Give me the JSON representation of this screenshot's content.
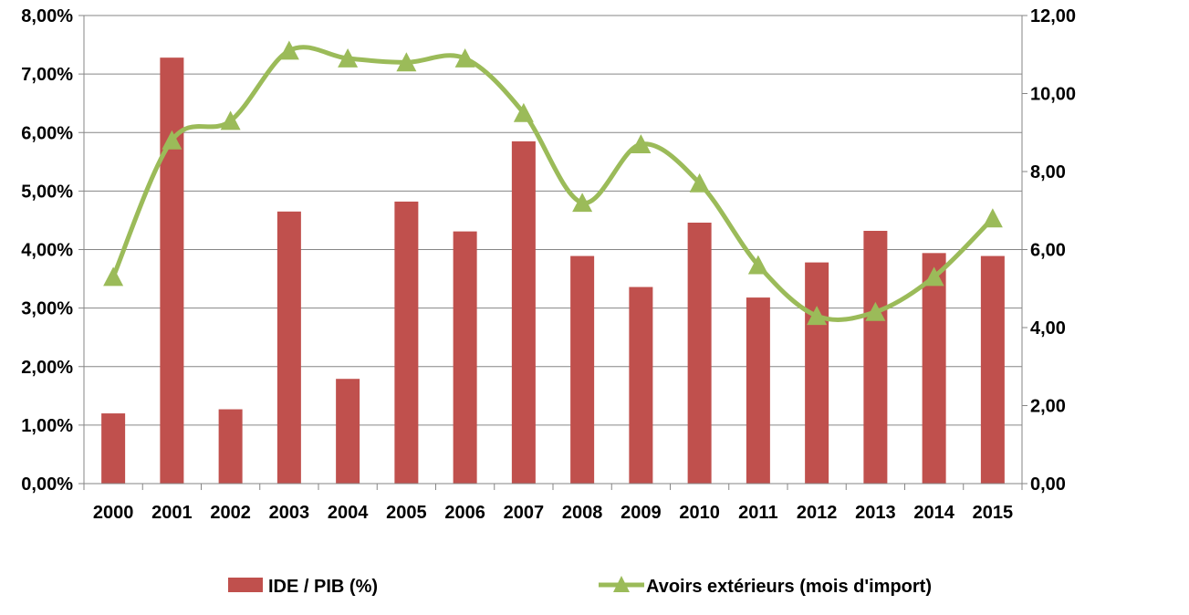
{
  "chart_data": {
    "type": "bar",
    "categories": [
      "2000",
      "2001",
      "2002",
      "2003",
      "2004",
      "2005",
      "2006",
      "2007",
      "2008",
      "2009",
      "2010",
      "2011",
      "2012",
      "2013",
      "2014",
      "2015"
    ],
    "series": [
      {
        "name": "IDE / PIB (%)",
        "type": "bar",
        "axis": "left",
        "color": "#c0504d",
        "values": [
          1.2,
          7.28,
          1.27,
          4.65,
          1.79,
          4.82,
          4.31,
          5.85,
          3.89,
          3.36,
          4.46,
          3.18,
          3.78,
          4.32,
          3.94,
          3.89
        ]
      },
      {
        "name": "Avoirs extérieurs (mois d'import)",
        "type": "line",
        "smooth": true,
        "marker": "triangle",
        "axis": "right",
        "color": "#9bbb59",
        "values": [
          5.3,
          8.8,
          9.3,
          11.1,
          10.9,
          10.8,
          10.9,
          9.5,
          7.2,
          8.7,
          7.7,
          5.6,
          4.3,
          4.4,
          5.3,
          6.8
        ]
      }
    ],
    "y_left": {
      "min": 0,
      "max": 8,
      "step": 1,
      "ticks": [
        "0,00%",
        "1,00%",
        "2,00%",
        "3,00%",
        "4,00%",
        "5,00%",
        "6,00%",
        "7,00%",
        "8,00%"
      ]
    },
    "y_right": {
      "min": 0,
      "max": 12,
      "step": 2,
      "ticks": [
        "0,00",
        "2,00",
        "4,00",
        "6,00",
        "8,00",
        "10,00",
        "12,00"
      ]
    },
    "grid": true,
    "legend": {
      "position": "bottom",
      "items": [
        {
          "label": "IDE / PIB (%)",
          "symbol": "bar",
          "color": "#c0504d"
        },
        {
          "label": "Avoirs extérieurs (mois d'import)",
          "symbol": "line-triangle",
          "color": "#9bbb59"
        }
      ]
    }
  }
}
